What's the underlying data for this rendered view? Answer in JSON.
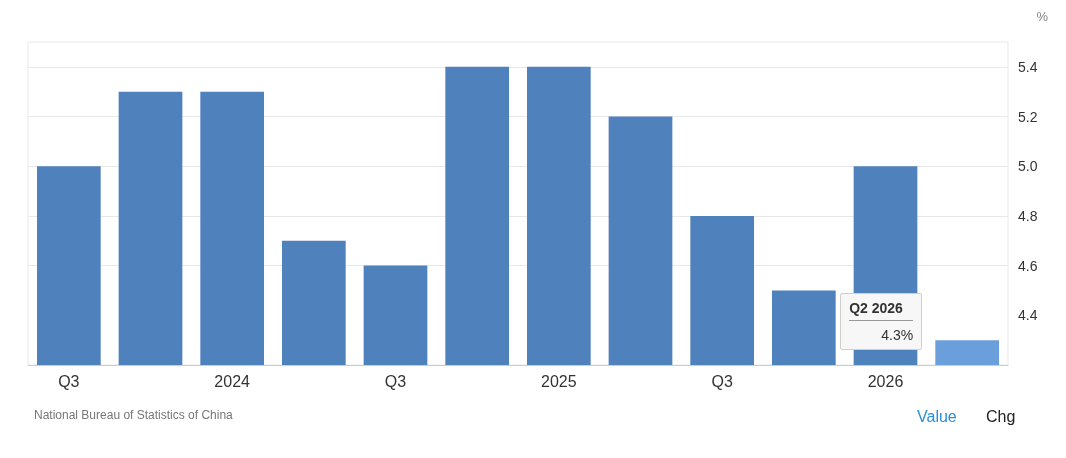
{
  "chart_data": {
    "type": "bar",
    "categories": [
      "Q3",
      null,
      "2024",
      null,
      "Q3",
      null,
      "2025",
      null,
      "Q3",
      null,
      "2026",
      null
    ],
    "values": [
      5.0,
      5.3,
      5.3,
      4.7,
      4.6,
      5.4,
      5.4,
      5.2,
      4.8,
      4.5,
      5.0,
      4.3
    ],
    "colors": [
      "#4f81bd",
      "#4f81bd",
      "#4f81bd",
      "#4f81bd",
      "#4f81bd",
      "#4f81bd",
      "#4f81bd",
      "#4f81bd",
      "#4f81bd",
      "#4f81bd",
      "#4f81bd",
      "#6a9fdb"
    ],
    "ylabel": "%",
    "ylim": [
      4.2,
      5.5
    ],
    "yticks": [
      {
        "value": 4.4,
        "label": "4.4"
      },
      {
        "value": 4.6,
        "label": "4.6"
      },
      {
        "value": 4.8,
        "label": "4.8"
      },
      {
        "value": 5.0,
        "label": "5.0"
      },
      {
        "value": 5.2,
        "label": "5.2"
      },
      {
        "value": 5.4,
        "label": "5.4"
      }
    ],
    "grid": "y",
    "annotations": [
      "National Bureau of Statistics of China",
      "Value",
      "Chg",
      "Q2 2026",
      "4.3%"
    ]
  }
}
